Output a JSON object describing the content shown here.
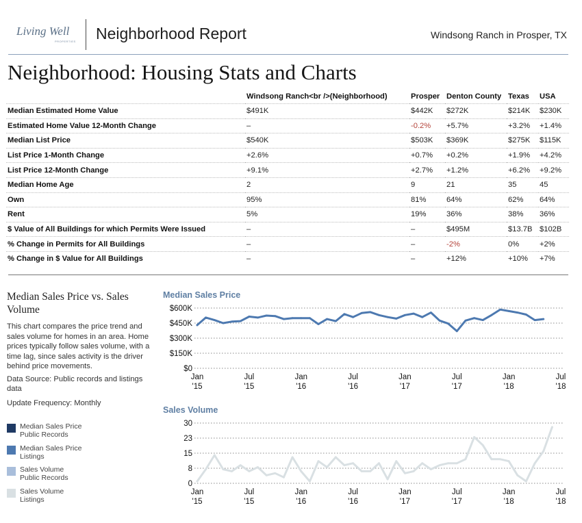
{
  "header": {
    "logo_text": "Living Well",
    "logo_subtext": "PROPERTIES",
    "title": "Neighborhood Report",
    "location": "Windsong Ranch in Prosper, TX"
  },
  "page_title": "Neighborhood: Housing Stats and Charts",
  "stats_table": {
    "columns": [
      "",
      "Windsong Ranch<br />(Neighborhood)",
      "Prosper",
      "Denton County",
      "Texas",
      "USA"
    ],
    "rows": [
      {
        "label": "Median Estimated Home Value",
        "values": [
          "$491K",
          "$442K",
          "$272K",
          "$214K",
          "$230K"
        ]
      },
      {
        "label": "Estimated Home Value 12-Month Change",
        "values": [
          "–",
          "-0.2%",
          "+5.7%",
          "+3.2%",
          "+1.4%"
        ]
      },
      {
        "label": "Median List Price",
        "values": [
          "$540K",
          "$503K",
          "$369K",
          "$275K",
          "$115K"
        ]
      },
      {
        "label": "List Price 1-Month Change",
        "values": [
          "+2.6%",
          "+0.7%",
          "+0.2%",
          "+1.9%",
          "+4.2%"
        ]
      },
      {
        "label": "List Price 12-Month Change",
        "values": [
          "+9.1%",
          "+2.7%",
          "+1.2%",
          "+6.2%",
          "+9.2%"
        ]
      },
      {
        "label": "Median Home Age",
        "values": [
          "2",
          "9",
          "21",
          "35",
          "45"
        ]
      },
      {
        "label": "Own",
        "values": [
          "95%",
          "81%",
          "64%",
          "62%",
          "64%"
        ]
      },
      {
        "label": "Rent",
        "values": [
          "5%",
          "19%",
          "36%",
          "38%",
          "36%"
        ]
      },
      {
        "label": "$ Value of All Buildings for which Permits Were Issued",
        "values": [
          "–",
          "–",
          "$495M",
          "$13.7B",
          "$102B"
        ]
      },
      {
        "label": "% Change in Permits for All Buildings",
        "values": [
          "–",
          "–",
          "-2%",
          "0%",
          "+2%"
        ]
      },
      {
        "label": "% Change in $ Value for All Buildings",
        "values": [
          "–",
          "–",
          "+12%",
          "+10%",
          "+7%"
        ]
      }
    ]
  },
  "sidebar": {
    "title": "Median Sales Price vs. Sales Volume",
    "description": "This chart compares the price trend and sales volume for homes in an area. Home prices typically follow sales volume, with a time lag, since sales activity is the driver behind price movements.",
    "source": "Data Source: Public records and listings data",
    "frequency": "Update Frequency: Monthly",
    "legend": [
      {
        "label_line1": "Median Sales Price",
        "label_line2": "Public Records",
        "color": "#1f3a64"
      },
      {
        "label_line1": "Median Sales Price",
        "label_line2": "Listings",
        "color": "#4d79b0"
      },
      {
        "label_line1": "Sales Volume",
        "label_line2": "Public Records",
        "color": "#a9bedb"
      },
      {
        "label_line1": "Sales Volume",
        "label_line2": "Listings",
        "color": "#d9e0e3"
      }
    ]
  },
  "chart_data": [
    {
      "type": "line",
      "title": "Median Sales Price",
      "series": [
        {
          "name": "Median Sales Price Listings",
          "color": "#4d79b0",
          "x": [
            "2015-01",
            "2015-02",
            "2015-03",
            "2015-04",
            "2015-05",
            "2015-06",
            "2015-07",
            "2015-08",
            "2015-09",
            "2015-10",
            "2015-11",
            "2015-12",
            "2016-01",
            "2016-02",
            "2016-03",
            "2016-04",
            "2016-05",
            "2016-06",
            "2016-07",
            "2016-08",
            "2016-09",
            "2016-10",
            "2016-11",
            "2016-12",
            "2017-01",
            "2017-02",
            "2017-03",
            "2017-04",
            "2017-05",
            "2017-06",
            "2017-07",
            "2017-08",
            "2017-09",
            "2017-10",
            "2017-11",
            "2017-12",
            "2018-01",
            "2018-02",
            "2018-03",
            "2018-04",
            "2018-05"
          ],
          "values": [
            430000,
            505000,
            480000,
            450000,
            465000,
            470000,
            515000,
            505000,
            525000,
            520000,
            490000,
            500000,
            500000,
            500000,
            440000,
            490000,
            470000,
            540000,
            510000,
            550000,
            560000,
            530000,
            510000,
            495000,
            530000,
            545000,
            510000,
            555000,
            475000,
            445000,
            370000,
            475000,
            500000,
            480000,
            530000,
            585000,
            570000,
            555000,
            535000,
            480000,
            490000
          ]
        }
      ],
      "x_ticks": [
        {
          "line1": "Jan",
          "line2": "'15"
        },
        {
          "line1": "Jul",
          "line2": "'15"
        },
        {
          "line1": "Jan",
          "line2": "'16"
        },
        {
          "line1": "Jul",
          "line2": "'16"
        },
        {
          "line1": "Jan",
          "line2": "'17"
        },
        {
          "line1": "Jul",
          "line2": "'17"
        },
        {
          "line1": "Jan",
          "line2": "'18"
        },
        {
          "line1": "Jul",
          "line2": "'18"
        }
      ],
      "y_ticks": [
        "$0",
        "$150K",
        "$300K",
        "$450K",
        "$600K"
      ],
      "ylim": [
        0,
        600000
      ]
    },
    {
      "type": "line",
      "title": "Sales Volume",
      "series": [
        {
          "name": "Sales Volume Listings",
          "color": "#d9e0e3",
          "x": [
            "2015-01",
            "2015-02",
            "2015-03",
            "2015-04",
            "2015-05",
            "2015-06",
            "2015-07",
            "2015-08",
            "2015-09",
            "2015-10",
            "2015-11",
            "2015-12",
            "2016-01",
            "2016-02",
            "2016-03",
            "2016-04",
            "2016-05",
            "2016-06",
            "2016-07",
            "2016-08",
            "2016-09",
            "2016-10",
            "2016-11",
            "2016-12",
            "2017-01",
            "2017-02",
            "2017-03",
            "2017-04",
            "2017-05",
            "2017-06",
            "2017-07",
            "2017-08",
            "2017-09",
            "2017-10",
            "2017-11",
            "2017-12",
            "2018-01",
            "2018-02",
            "2018-03",
            "2018-04",
            "2018-05",
            "2018-06"
          ],
          "values": [
            1,
            7,
            14,
            7,
            6,
            9,
            6,
            8,
            4,
            5,
            3,
            13,
            6,
            1,
            11,
            8,
            13,
            9,
            10,
            6,
            6,
            10,
            2,
            11,
            5,
            6,
            10,
            7,
            9,
            10,
            10,
            12,
            23,
            19,
            12,
            12,
            11,
            4,
            1,
            10,
            16,
            28
          ]
        }
      ],
      "x_ticks": [
        {
          "line1": "Jan",
          "line2": "'15"
        },
        {
          "line1": "Jul",
          "line2": "'15"
        },
        {
          "line1": "Jan",
          "line2": "'16"
        },
        {
          "line1": "Jul",
          "line2": "'16"
        },
        {
          "line1": "Jan",
          "line2": "'17"
        },
        {
          "line1": "Jul",
          "line2": "'17"
        },
        {
          "line1": "Jan",
          "line2": "'18"
        },
        {
          "line1": "Jul",
          "line2": "'18"
        }
      ],
      "y_ticks": [
        "0",
        "8",
        "15",
        "23",
        "30"
      ],
      "ylim": [
        0,
        30
      ]
    }
  ]
}
